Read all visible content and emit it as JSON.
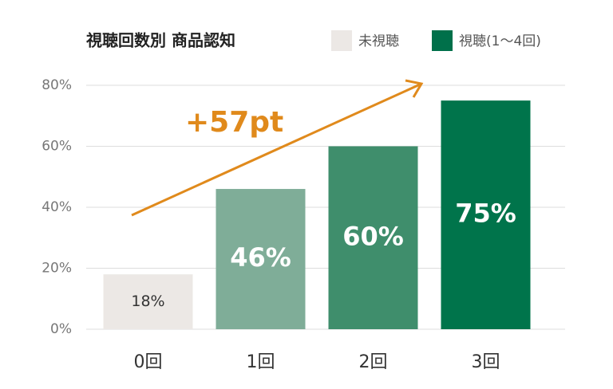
{
  "chart_data": {
    "type": "bar",
    "title": "視聴回数別 商品認知",
    "legend": [
      {
        "name": "未視聴",
        "color": "#ece8e5"
      },
      {
        "name": "視聴(1〜4回)",
        "color": "#00704a"
      }
    ],
    "categories": [
      "0回",
      "1回",
      "2回",
      "3回"
    ],
    "values": [
      18,
      46,
      60,
      75
    ],
    "value_labels": [
      "18%",
      "46%",
      "60%",
      "75%"
    ],
    "colors": [
      "#ece8e5",
      "#7fad98",
      "#3f8e6c",
      "#00744b"
    ],
    "value_label_colors": [
      "#333333",
      "#ffffff",
      "#ffffff",
      "#ffffff"
    ],
    "ylim": [
      0,
      80
    ],
    "yticks": [
      {
        "value": 0,
        "label": "0%"
      },
      {
        "value": 20,
        "label": "20%"
      },
      {
        "value": 40,
        "label": "40%"
      },
      {
        "value": 60,
        "label": "60%"
      },
      {
        "value": 80,
        "label": "80%"
      }
    ],
    "grid": true,
    "annotations": [
      {
        "text": "+57pt",
        "color": "#e08a1c"
      }
    ]
  }
}
